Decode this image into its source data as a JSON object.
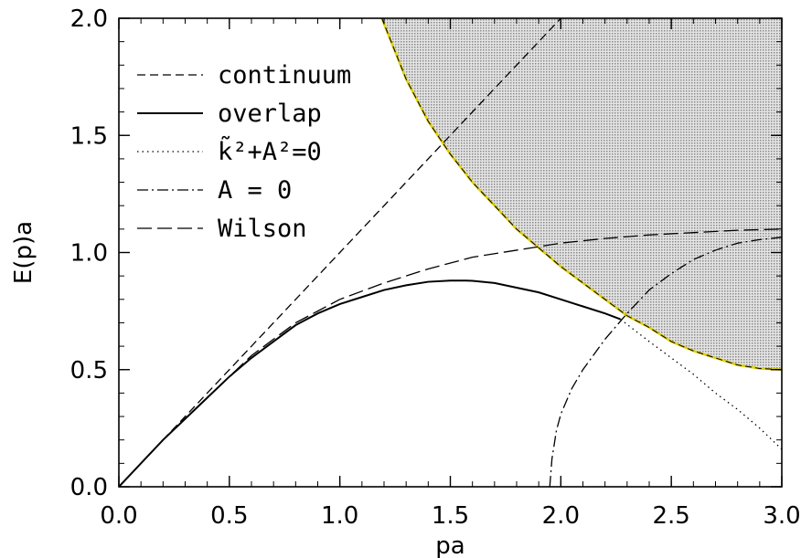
{
  "chart_data": {
    "type": "line",
    "title": "",
    "xlabel": "pa",
    "ylabel": "E(p)a",
    "xlim": [
      0.0,
      3.0
    ],
    "ylim": [
      0.0,
      2.0
    ],
    "x_ticks": [
      "0.0",
      "0.5",
      "1.0",
      "1.5",
      "2.0",
      "2.5",
      "3.0"
    ],
    "y_ticks": [
      "0.0",
      "0.5",
      "1.0",
      "1.5",
      "2.0"
    ],
    "grid": false,
    "legend_position": "top-left",
    "legend": [
      "continuum",
      "overlap",
      "k̃²+A²=0",
      "A = 0",
      "Wilson"
    ],
    "shaded_region": {
      "description_visible": false,
      "boundary_x": [
        1.19,
        1.3,
        1.4,
        1.5,
        1.6,
        1.7,
        1.8,
        1.9,
        2.0,
        2.1,
        2.2,
        2.3,
        2.4,
        2.5,
        2.6,
        2.7,
        2.8,
        2.9,
        3.0
      ],
      "boundary_y": [
        2.0,
        1.74,
        1.56,
        1.42,
        1.3,
        1.2,
        1.1,
        1.02,
        0.94,
        0.87,
        0.8,
        0.73,
        0.68,
        0.62,
        0.58,
        0.55,
        0.52,
        0.505,
        0.5
      ],
      "fill_color": "#c8c8c8",
      "edge_color": "#e0d000"
    },
    "series": [
      {
        "name": "continuum",
        "x": [
          0.0,
          2.0
        ],
        "y": [
          0.0,
          2.0
        ]
      },
      {
        "name": "overlap",
        "x": [
          0.0,
          0.1,
          0.2,
          0.3,
          0.4,
          0.5,
          0.6,
          0.7,
          0.8,
          0.9,
          1.0,
          1.1,
          1.2,
          1.3,
          1.4,
          1.5,
          1.57,
          1.6,
          1.7,
          1.8,
          1.9,
          2.0,
          2.1,
          2.2,
          2.27
        ],
        "y": [
          0.0,
          0.1,
          0.2,
          0.29,
          0.38,
          0.47,
          0.55,
          0.62,
          0.69,
          0.74,
          0.78,
          0.81,
          0.84,
          0.86,
          0.875,
          0.88,
          0.88,
          0.879,
          0.87,
          0.85,
          0.83,
          0.8,
          0.77,
          0.74,
          0.715
        ]
      },
      {
        "name": "k̃²+A²=0",
        "x": [
          2.27,
          2.4,
          2.5,
          2.6,
          2.7,
          2.8,
          2.9,
          3.0
        ],
        "y": [
          0.715,
          0.62,
          0.55,
          0.48,
          0.4,
          0.33,
          0.25,
          0.16
        ]
      },
      {
        "name": "A = 0",
        "x": [
          1.95,
          1.96,
          1.98,
          2.0,
          2.05,
          2.1,
          2.2,
          2.3,
          2.4,
          2.5,
          2.6,
          2.7,
          2.8,
          2.9,
          3.0
        ],
        "y": [
          0.0,
          0.12,
          0.24,
          0.31,
          0.42,
          0.5,
          0.63,
          0.74,
          0.84,
          0.91,
          0.97,
          1.01,
          1.04,
          1.055,
          1.065
        ]
      },
      {
        "name": "Wilson",
        "x": [
          0.0,
          0.1,
          0.2,
          0.3,
          0.4,
          0.5,
          0.6,
          0.7,
          0.8,
          0.9,
          1.0,
          1.2,
          1.4,
          1.6,
          1.8,
          2.0,
          2.2,
          2.4,
          2.6,
          2.8,
          3.0
        ],
        "y": [
          0.0,
          0.1,
          0.2,
          0.29,
          0.38,
          0.47,
          0.56,
          0.63,
          0.7,
          0.75,
          0.8,
          0.87,
          0.93,
          0.98,
          1.01,
          1.04,
          1.06,
          1.075,
          1.085,
          1.095,
          1.1
        ]
      }
    ]
  }
}
